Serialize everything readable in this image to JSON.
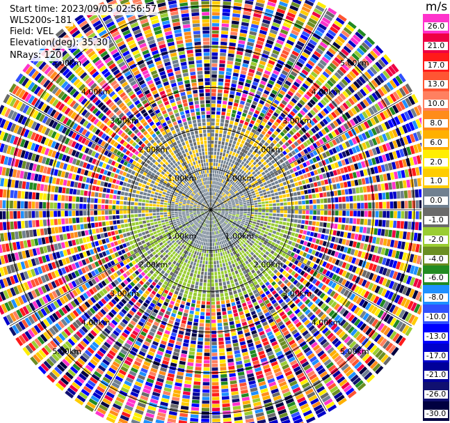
{
  "header": {
    "start_time": "Start time: 2023/09/05 02:56:57",
    "instrument": "WLS200s-181",
    "field": "Field: VEL",
    "elevation": "Elevation(deg): 35.30",
    "nrays": "NRays: 120"
  },
  "colorbar": {
    "unit": "m/s",
    "bins": [
      {
        "label": "26.0",
        "color": "#ff33cc"
      },
      {
        "label": "21.0",
        "color": "#ee0044"
      },
      {
        "label": "17.0",
        "color": "#ff1a1a"
      },
      {
        "label": "13.0",
        "color": "#ff5533"
      },
      {
        "label": "10.0",
        "color": "#ff8060"
      },
      {
        "label": "8.0",
        "color": "#ff8c1a"
      },
      {
        "label": "6.0",
        "color": "#ffb000"
      },
      {
        "label": "2.0",
        "color": "#ffee00"
      },
      {
        "label": "1.0",
        "color": "#ffcc00"
      },
      {
        "label": "0.0",
        "color": "#708090"
      },
      {
        "label": "-1.0",
        "color": "#6a6a6a"
      },
      {
        "label": "-2.0",
        "color": "#9acd32"
      },
      {
        "label": "-4.0",
        "color": "#6b8e23"
      },
      {
        "label": "-6.0",
        "color": "#228b22"
      },
      {
        "label": "-8.0",
        "color": "#1e90ff"
      },
      {
        "label": "-10.0",
        "color": "#3050ff"
      },
      {
        "label": "-13.0",
        "color": "#0000ff"
      },
      {
        "label": "-17.0",
        "color": "#0000cc"
      },
      {
        "label": "-21.0",
        "color": "#000099"
      },
      {
        "label": "-26.0",
        "color": "#101070"
      },
      {
        "label": "-30.0",
        "color": "#000040"
      }
    ]
  },
  "chart_data": {
    "type": "heatmap",
    "projection": "polar-ppi",
    "field": "VEL",
    "unit": "m/s",
    "n_rays": 120,
    "elevation_deg": 35.3,
    "range_rings_km": [
      1.0,
      2.0,
      3.0,
      4.0,
      5.0
    ],
    "ring_labels": [
      "1.00km",
      "2.00km",
      "3.00km",
      "4.00km",
      "5.00km"
    ],
    "max_range_km": 5.7,
    "spoke_angles_deg": [
      0,
      30,
      60,
      90,
      120,
      150,
      180,
      210,
      240,
      270,
      300,
      330
    ],
    "pattern": {
      "signal_range_km": 2.2,
      "upper_half_value": 1.0,
      "lower_half_value": -2.0,
      "near_zero_value": 0.0,
      "beyond_signal": "noise spanning full velocity range -30 to 26 m/s"
    }
  }
}
